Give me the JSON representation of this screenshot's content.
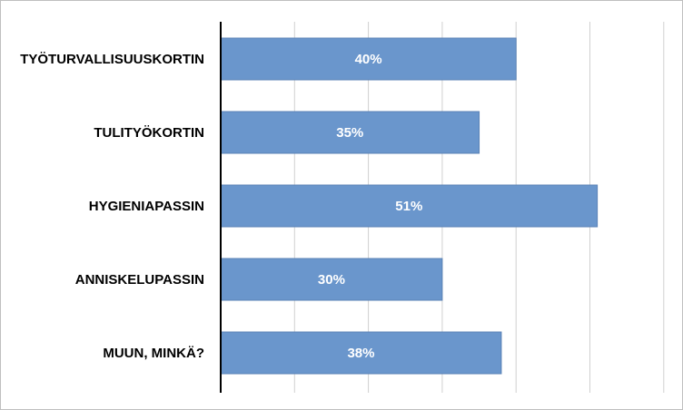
{
  "chart_data": {
    "type": "bar",
    "orientation": "horizontal",
    "categories": [
      "TYÖTURVALLISUUSKORTIN",
      "TULITYÖKORTIN",
      "HYGIENIAPASSIN",
      "ANNISKELUPASSIN",
      "MUUN, MINKÄ?"
    ],
    "values": [
      40,
      35,
      51,
      30,
      38
    ],
    "data_labels": [
      "40%",
      "35%",
      "51%",
      "30%",
      "38%"
    ],
    "xlim": [
      0,
      60
    ],
    "grid": true,
    "legend": "none",
    "bar_color": "#6a96cc",
    "bar_edge_color": "#5a82b6"
  }
}
